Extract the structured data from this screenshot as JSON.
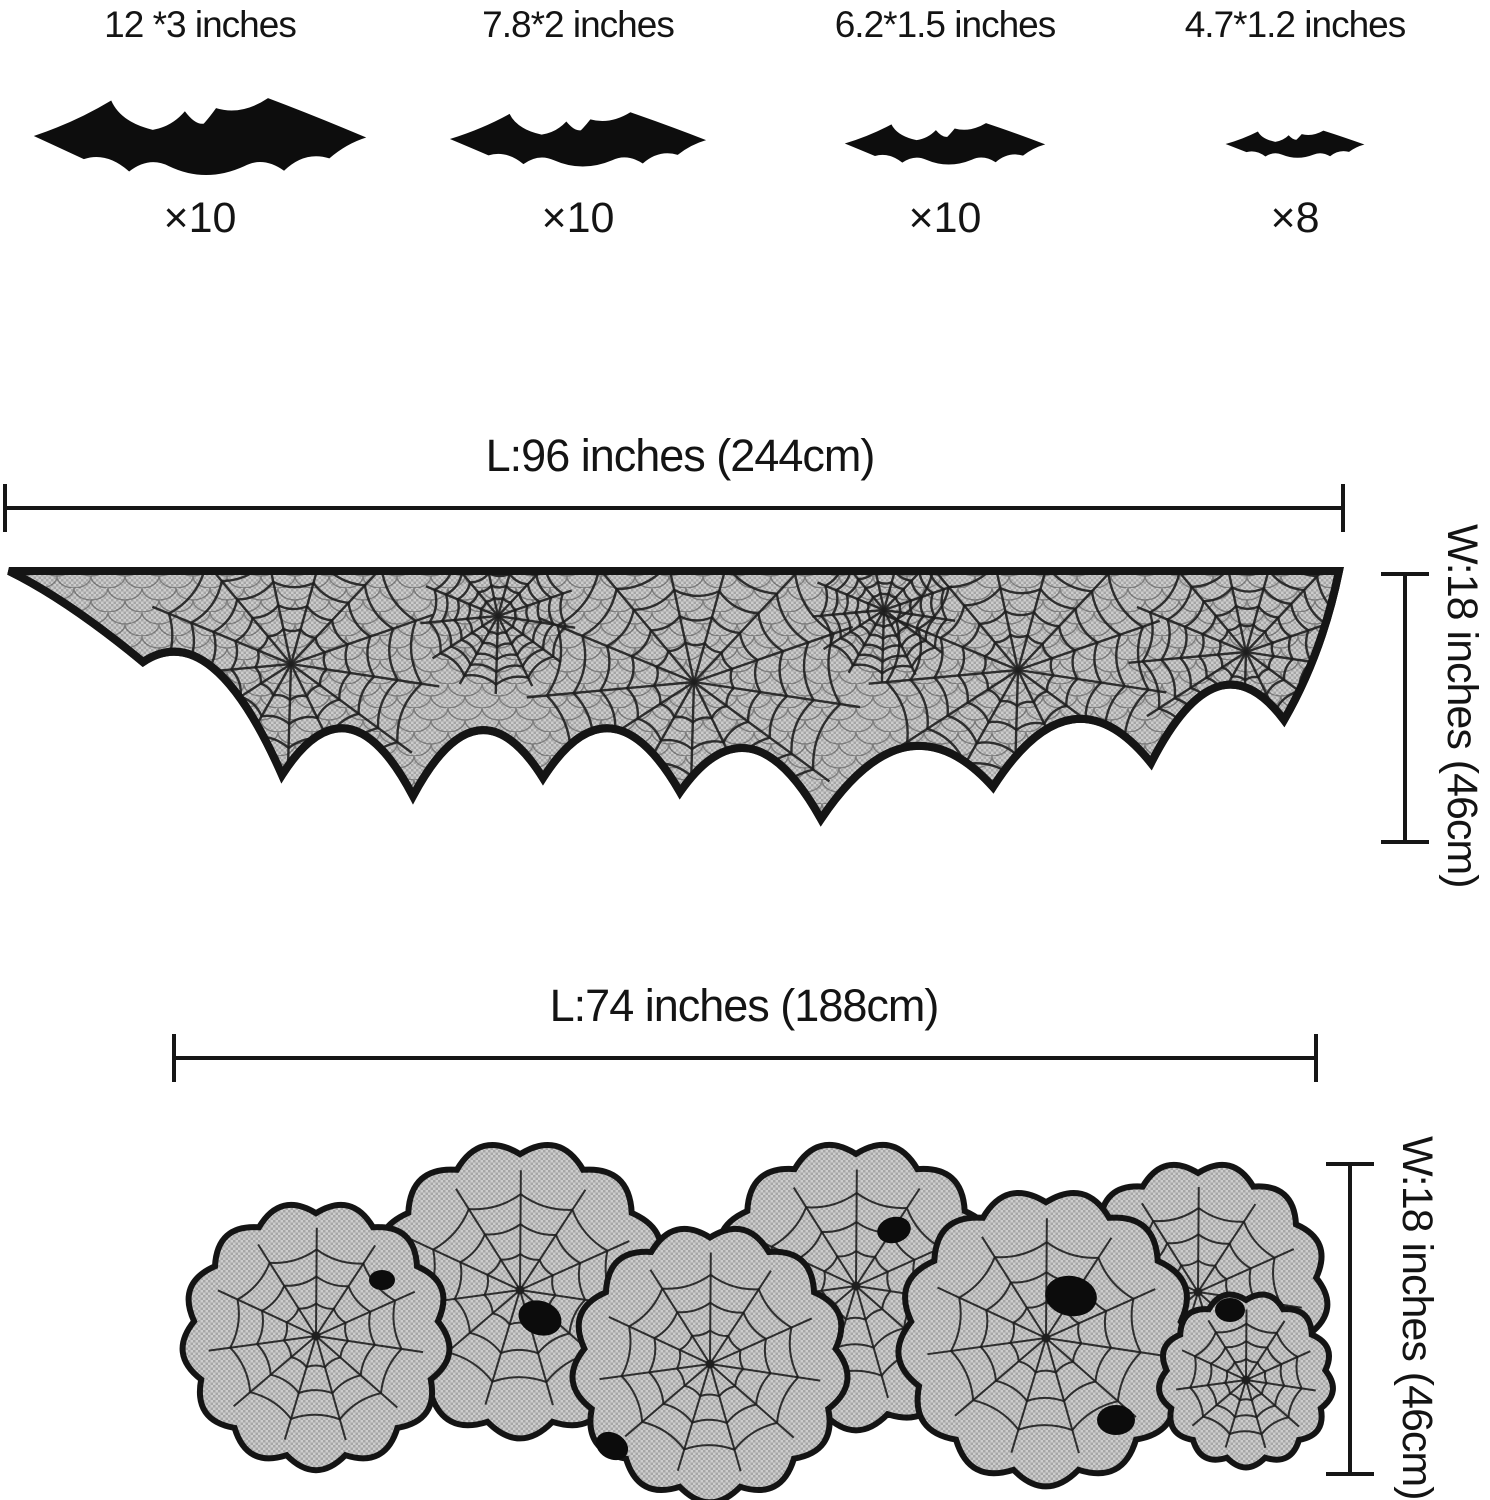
{
  "bats": {
    "items": [
      {
        "size_label": "12 *3 inches",
        "quantity_label": "×10"
      },
      {
        "size_label": "7.8*2 inches",
        "quantity_label": "×10"
      },
      {
        "size_label": "6.2*1.5 inches",
        "quantity_label": "×10"
      },
      {
        "size_label": "4.7*1.2 inches",
        "quantity_label": "×8"
      }
    ]
  },
  "mantel_scarf": {
    "length_label": "L:96 inches (244cm)",
    "width_label": "W:18 inches (46cm)"
  },
  "table_runner": {
    "length_label": "L:74 inches (188cm)",
    "width_label": "W:18 inches (46cm)"
  },
  "colors": {
    "background": "#ffffff",
    "ink": "#161616",
    "bat_fill": "#0d0d0d",
    "lace_base": "#bcbcbc",
    "lace_line": "#1f1f1f"
  }
}
